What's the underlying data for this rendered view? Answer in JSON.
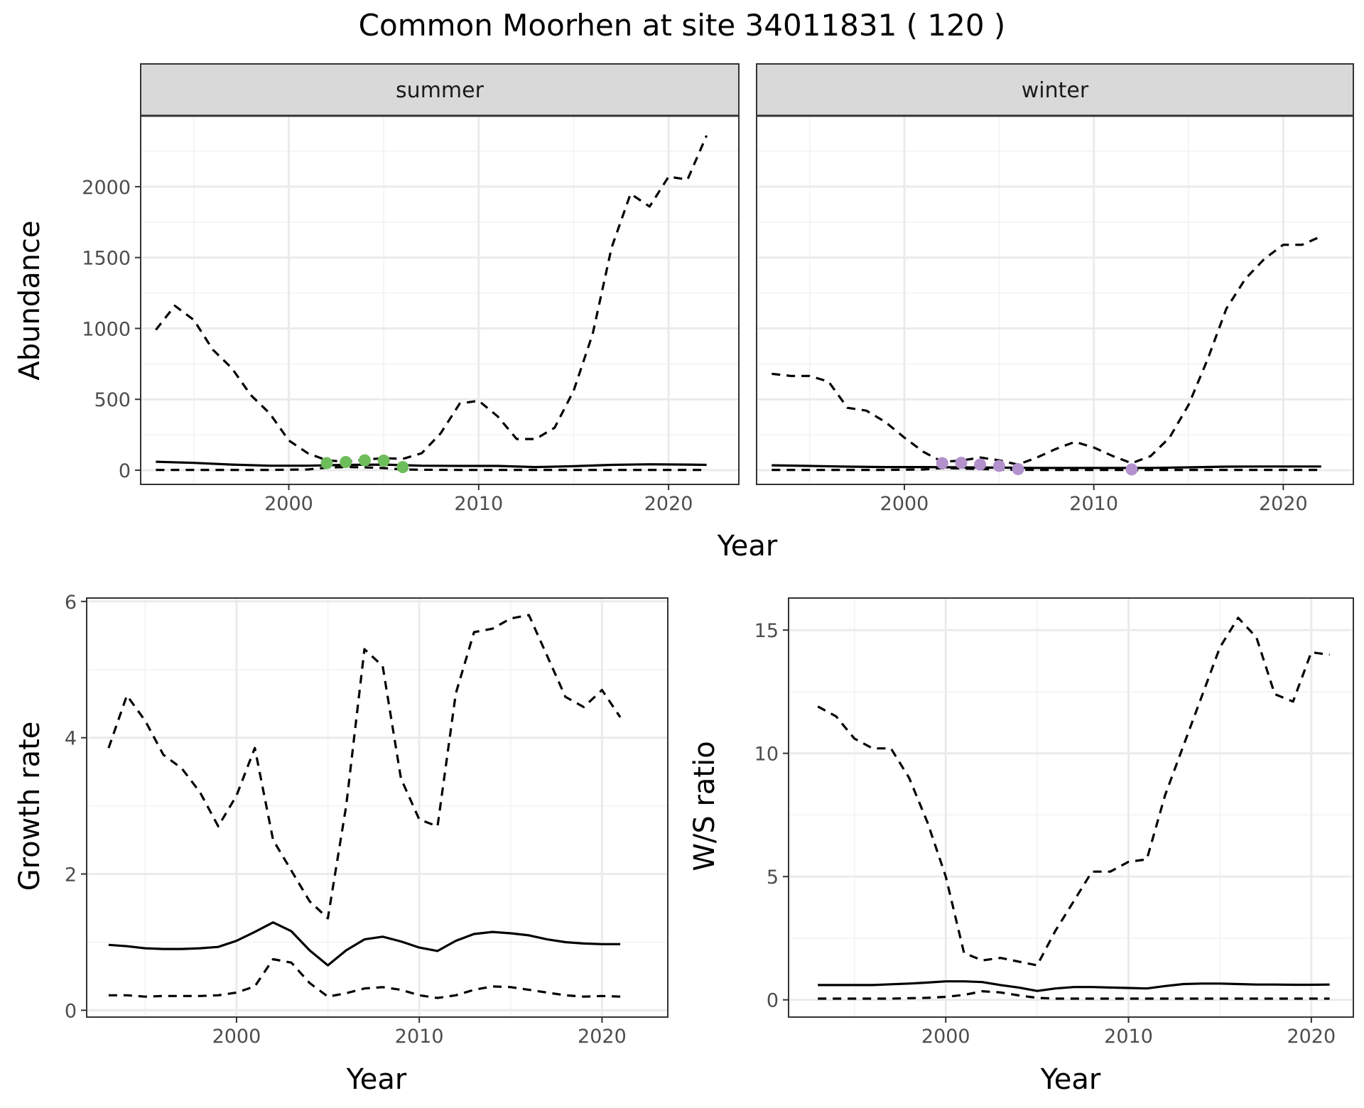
{
  "title": "Common Moorhen at site 34011831 ( 120 )",
  "colors": {
    "summer_points": "#6ebd5b",
    "winter_points": "#b291cc",
    "line": "#000000",
    "strip_fill": "#d9d9d9",
    "grid_major": "#ebebeb"
  },
  "chart_data": [
    {
      "type": "line",
      "panel": "summer",
      "strip_label": "summer",
      "ylabel": "Abundance",
      "xlabel": "Year",
      "xlim": [
        1992.2,
        2023.7
      ],
      "ylim": [
        -100,
        2500
      ],
      "xticks": [
        2000,
        2010,
        2020
      ],
      "yticks": [
        0,
        500,
        1000,
        1500,
        2000
      ],
      "grid": true,
      "series": [
        {
          "style": "solid",
          "x": [
            1993,
            1995,
            1997,
            1999,
            2001,
            2003,
            2005,
            2007,
            2009,
            2011,
            2013,
            2015,
            2017,
            2019,
            2021,
            2022
          ],
          "values": [
            60,
            52,
            40,
            32,
            32,
            38,
            40,
            32,
            30,
            30,
            22,
            28,
            38,
            42,
            40,
            38
          ]
        },
        {
          "style": "dashed",
          "x": [
            1993,
            1994,
            1995,
            1996,
            1997,
            1998,
            1999,
            2000,
            2001,
            2002,
            2003,
            2004,
            2005,
            2006,
            2007,
            2008,
            2009,
            2010,
            2011,
            2012,
            2013,
            2014,
            2015,
            2016,
            2017,
            2018,
            2019,
            2020,
            2021,
            2022
          ],
          "values": [
            990,
            1160,
            1060,
            850,
            720,
            530,
            400,
            210,
            120,
            70,
            60,
            75,
            85,
            80,
            120,
            260,
            470,
            490,
            380,
            220,
            220,
            300,
            560,
            960,
            1570,
            1950,
            1860,
            2070,
            2050,
            2360
          ]
        },
        {
          "style": "dashed",
          "x": [
            1993,
            1995,
            1997,
            1999,
            2001,
            2002,
            2003,
            2004,
            2005,
            2006,
            2007,
            2009,
            2011,
            2013,
            2015,
            2017,
            2019,
            2021,
            2022
          ],
          "values": [
            2,
            2,
            2,
            2,
            5,
            18,
            22,
            20,
            15,
            5,
            3,
            2,
            2,
            2,
            2,
            2,
            2,
            2,
            2
          ]
        }
      ],
      "points": {
        "x": [
          2002,
          2003,
          2004,
          2005,
          2006
        ],
        "values": [
          50,
          58,
          70,
          68,
          22
        ]
      }
    },
    {
      "type": "line",
      "panel": "winter",
      "strip_label": "winter",
      "xlabel": "Year",
      "xlim": [
        1992.2,
        2023.7
      ],
      "ylim": [
        -100,
        2500
      ],
      "xticks": [
        2000,
        2010,
        2020
      ],
      "yticks": [
        0,
        500,
        1000,
        1500,
        2000
      ],
      "grid": true,
      "series": [
        {
          "style": "solid",
          "x": [
            1993,
            1995,
            1997,
            1999,
            2001,
            2003,
            2005,
            2007,
            2009,
            2011,
            2013,
            2015,
            2017,
            2019,
            2021,
            2022
          ],
          "values": [
            35,
            30,
            25,
            22,
            22,
            20,
            18,
            16,
            16,
            16,
            16,
            20,
            25,
            26,
            26,
            26
          ]
        },
        {
          "style": "dashed",
          "x": [
            1993,
            1994,
            1995,
            1996,
            1997,
            1998,
            1999,
            2000,
            2001,
            2002,
            2003,
            2004,
            2005,
            2006,
            2007,
            2008,
            2009,
            2010,
            2011,
            2012,
            2013,
            2014,
            2015,
            2016,
            2017,
            2018,
            2019,
            2020,
            2021,
            2022
          ],
          "values": [
            680,
            665,
            665,
            625,
            440,
            420,
            340,
            230,
            130,
            60,
            68,
            90,
            70,
            40,
            90,
            150,
            200,
            160,
            100,
            50,
            100,
            230,
            460,
            780,
            1140,
            1350,
            1490,
            1590,
            1590,
            1650
          ]
        },
        {
          "style": "dashed",
          "x": [
            1993,
            1995,
            1997,
            1999,
            2001,
            2002,
            2003,
            2004,
            2005,
            2006,
            2007,
            2009,
            2011,
            2013,
            2015,
            2017,
            2019,
            2021,
            2022
          ],
          "values": [
            2,
            2,
            2,
            2,
            5,
            15,
            12,
            8,
            5,
            3,
            2,
            2,
            2,
            2,
            2,
            2,
            2,
            2,
            2
          ]
        }
      ],
      "points": {
        "x": [
          2002,
          2003,
          2004,
          2005,
          2006,
          2012
        ],
        "values": [
          50,
          52,
          40,
          30,
          8,
          6
        ]
      }
    },
    {
      "type": "line",
      "panel": "growth",
      "ylabel": "Growth rate",
      "xlabel": "Year",
      "xlim": [
        1991.8,
        2023.6
      ],
      "ylim": [
        -0.1,
        6.05
      ],
      "xticks": [
        2000,
        2010,
        2020
      ],
      "yticks": [
        0,
        2,
        4,
        6
      ],
      "grid": true,
      "series": [
        {
          "style": "solid",
          "x": [
            1993,
            1994,
            1995,
            1996,
            1997,
            1998,
            1999,
            2000,
            2001,
            2002,
            2003,
            2004,
            2005,
            2006,
            2007,
            2008,
            2009,
            2010,
            2011,
            2012,
            2013,
            2014,
            2015,
            2016,
            2017,
            2018,
            2019,
            2020,
            2021
          ],
          "values": [
            0.96,
            0.94,
            0.91,
            0.9,
            0.9,
            0.91,
            0.93,
            1.02,
            1.15,
            1.29,
            1.16,
            0.88,
            0.66,
            0.88,
            1.04,
            1.08,
            1.01,
            0.92,
            0.87,
            1.02,
            1.12,
            1.15,
            1.13,
            1.1,
            1.04,
            1.0,
            0.98,
            0.97,
            0.97
          ]
        },
        {
          "style": "dashed",
          "x": [
            1993,
            1994,
            1995,
            1996,
            1997,
            1998,
            1999,
            2000,
            2001,
            2002,
            2003,
            2004,
            2005,
            2006,
            2007,
            2008,
            2009,
            2010,
            2011,
            2012,
            2013,
            2014,
            2015,
            2016,
            2017,
            2018,
            2019,
            2020,
            2021
          ],
          "values": [
            3.85,
            4.62,
            4.25,
            3.75,
            3.55,
            3.2,
            2.7,
            3.15,
            3.85,
            2.5,
            2.05,
            1.6,
            1.35,
            3.0,
            5.3,
            5.05,
            3.4,
            2.8,
            2.7,
            4.65,
            5.55,
            5.6,
            5.75,
            5.8,
            5.2,
            4.6,
            4.45,
            4.7,
            4.3
          ]
        },
        {
          "style": "dashed",
          "x": [
            1993,
            1994,
            1995,
            1996,
            1997,
            1998,
            1999,
            2000,
            2001,
            2002,
            2003,
            2004,
            2005,
            2006,
            2007,
            2008,
            2009,
            2010,
            2011,
            2012,
            2013,
            2014,
            2015,
            2016,
            2017,
            2018,
            2019,
            2020,
            2021
          ],
          "values": [
            0.22,
            0.22,
            0.2,
            0.21,
            0.21,
            0.21,
            0.22,
            0.26,
            0.35,
            0.75,
            0.7,
            0.4,
            0.2,
            0.25,
            0.32,
            0.34,
            0.3,
            0.22,
            0.18,
            0.22,
            0.3,
            0.35,
            0.34,
            0.3,
            0.26,
            0.22,
            0.2,
            0.21,
            0.2
          ]
        }
      ]
    },
    {
      "type": "line",
      "panel": "ratio",
      "ylabel": "W/S ratio",
      "xlabel": "Year",
      "xlim": [
        1991.4,
        2022.3
      ],
      "ylim": [
        -0.7,
        16.3
      ],
      "xticks": [
        2000,
        2010,
        2020
      ],
      "yticks": [
        0,
        5,
        10,
        15
      ],
      "grid": true,
      "series": [
        {
          "style": "solid",
          "x": [
            1993,
            1994,
            1995,
            1996,
            1997,
            1998,
            1999,
            2000,
            2001,
            2002,
            2003,
            2004,
            2005,
            2006,
            2007,
            2008,
            2009,
            2010,
            2011,
            2012,
            2013,
            2014,
            2015,
            2016,
            2017,
            2018,
            2019,
            2020,
            2021
          ],
          "values": [
            0.6,
            0.6,
            0.6,
            0.6,
            0.63,
            0.66,
            0.7,
            0.75,
            0.75,
            0.72,
            0.6,
            0.5,
            0.36,
            0.46,
            0.52,
            0.52,
            0.5,
            0.48,
            0.46,
            0.56,
            0.64,
            0.66,
            0.66,
            0.64,
            0.62,
            0.62,
            0.61,
            0.61,
            0.62
          ]
        },
        {
          "style": "dashed",
          "x": [
            1993,
            1994,
            1995,
            1996,
            1997,
            1998,
            1999,
            2000,
            2001,
            2002,
            2003,
            2004,
            2005,
            2006,
            2007,
            2008,
            2009,
            2010,
            2011,
            2012,
            2013,
            2014,
            2015,
            2016,
            2017,
            2018,
            2019,
            2020,
            2021
          ],
          "values": [
            11.9,
            11.5,
            10.6,
            10.2,
            10.2,
            9.0,
            7.2,
            5.0,
            1.9,
            1.6,
            1.7,
            1.55,
            1.4,
            2.8,
            4.0,
            5.2,
            5.2,
            5.6,
            5.7,
            8.3,
            10.3,
            12.3,
            14.3,
            15.5,
            14.7,
            12.4,
            12.1,
            14.1,
            14.0
          ]
        },
        {
          "style": "dashed",
          "x": [
            1993,
            1995,
            1997,
            1999,
            2000,
            2001,
            2002,
            2003,
            2004,
            2005,
            2006,
            2008,
            2010,
            2012,
            2014,
            2016,
            2018,
            2020,
            2021
          ],
          "values": [
            0.05,
            0.05,
            0.05,
            0.08,
            0.12,
            0.2,
            0.35,
            0.3,
            0.18,
            0.08,
            0.05,
            0.05,
            0.05,
            0.05,
            0.05,
            0.05,
            0.05,
            0.05,
            0.05
          ]
        }
      ]
    }
  ]
}
